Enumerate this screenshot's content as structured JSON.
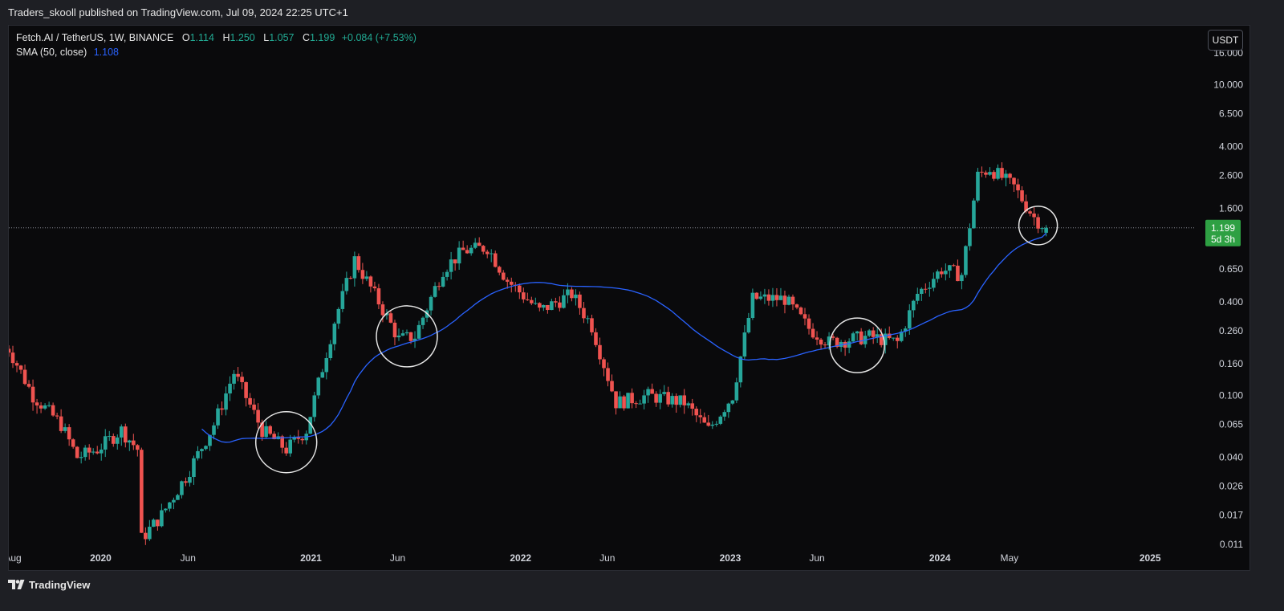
{
  "header": {
    "published_line": "Traders_skooll published on TradingView.com, Jul 09, 2024 22:25 UTC+1"
  },
  "legend": {
    "symbol": "Fetch.AI / TetherUS, 1W, BINANCE",
    "o_key": "O",
    "open": "1.114",
    "h_key": "H",
    "high": "1.250",
    "l_key": "L",
    "low": "1.057",
    "c_key": "C",
    "close": "1.199",
    "change": "+0.084 (+7.53%)",
    "sma_label": "SMA (50, close)",
    "sma_value": "1.108"
  },
  "price_axis": {
    "unit_button": "USDT",
    "last_price": "1.199",
    "countdown": "5d 3h"
  },
  "footer": {
    "brand": "TradingView"
  },
  "colors": {
    "background": "#0a0a0c",
    "up": "#26a69a",
    "down": "#ef5350",
    "sma": "#2962ff",
    "last_price_tag": "#2ea043"
  },
  "chart_data": {
    "type": "candlestick",
    "timeframe": "1W",
    "y_scale": "log",
    "ylim": [
      0.011,
      16.0
    ],
    "xlim": [
      "2019-07-25",
      "2025-03-20"
    ],
    "y_ticks": [
      "16.000",
      "10.000",
      "6.500",
      "4.000",
      "2.600",
      "1.600",
      "0.650",
      "0.400",
      "0.260",
      "0.160",
      "0.100",
      "0.065",
      "0.040",
      "0.026",
      "0.017",
      "0.011"
    ],
    "x_ticks": [
      {
        "label": "Aug",
        "date": "2019-08-01"
      },
      {
        "label": "2020",
        "date": "2020-01-01"
      },
      {
        "label": "Jun",
        "date": "2020-06-01"
      },
      {
        "label": "2021",
        "date": "2021-01-01"
      },
      {
        "label": "Jun",
        "date": "2021-06-01"
      },
      {
        "label": "2022",
        "date": "2022-01-01"
      },
      {
        "label": "Jun",
        "date": "2022-06-01"
      },
      {
        "label": "2023",
        "date": "2023-01-01"
      },
      {
        "label": "Jun",
        "date": "2023-06-01"
      },
      {
        "label": "2024",
        "date": "2024-01-01"
      },
      {
        "label": "May",
        "date": "2024-05-01"
      },
      {
        "label": "2025",
        "date": "2025-01-01"
      }
    ],
    "price_anchors": [
      [
        "2019-07-25",
        0.2
      ],
      [
        "2019-09-05",
        0.1
      ],
      [
        "2019-10-24",
        0.065
      ],
      [
        "2019-11-21",
        0.04
      ],
      [
        "2019-12-26",
        0.045
      ],
      [
        "2020-02-06",
        0.06
      ],
      [
        "2020-03-05",
        0.045
      ],
      [
        "2020-03-12",
        0.012
      ],
      [
        "2020-04-16",
        0.017
      ],
      [
        "2020-05-28",
        0.03
      ],
      [
        "2020-07-16",
        0.065
      ],
      [
        "2020-08-20",
        0.14
      ],
      [
        "2020-10-08",
        0.06
      ],
      [
        "2020-11-19",
        0.045
      ],
      [
        "2020-12-24",
        0.06
      ],
      [
        "2021-02-11",
        0.3
      ],
      [
        "2021-03-18",
        0.75
      ],
      [
        "2021-04-29",
        0.4
      ],
      [
        "2021-06-03",
        0.23
      ],
      [
        "2021-07-01",
        0.24
      ],
      [
        "2021-08-19",
        0.65
      ],
      [
        "2021-09-23",
        0.85
      ],
      [
        "2021-11-04",
        0.9
      ],
      [
        "2021-12-09",
        0.55
      ],
      [
        "2022-02-03",
        0.35
      ],
      [
        "2022-03-31",
        0.45
      ],
      [
        "2022-05-05",
        0.28
      ],
      [
        "2022-06-16",
        0.09
      ],
      [
        "2022-08-11",
        0.1
      ],
      [
        "2022-10-13",
        0.09
      ],
      [
        "2022-11-24",
        0.06
      ],
      [
        "2023-01-05",
        0.1
      ],
      [
        "2023-02-09",
        0.42
      ],
      [
        "2023-04-06",
        0.42
      ],
      [
        "2023-05-18",
        0.27
      ],
      [
        "2023-06-22",
        0.22
      ],
      [
        "2023-08-31",
        0.24
      ],
      [
        "2023-10-19",
        0.22
      ],
      [
        "2023-11-23",
        0.45
      ],
      [
        "2024-01-04",
        0.65
      ],
      [
        "2024-02-08",
        0.6
      ],
      [
        "2024-03-07",
        2.6
      ],
      [
        "2024-03-28",
        2.9
      ],
      [
        "2024-05-09",
        2.2
      ],
      [
        "2024-06-13",
        1.4
      ],
      [
        "2024-07-04",
        1.199
      ]
    ],
    "last_candle": {
      "date": "2024-07-04",
      "open": 1.114,
      "high": 1.25,
      "low": 1.057,
      "close": 1.199
    },
    "sma": {
      "period": 50,
      "source": "close",
      "last_value": 1.108
    }
  }
}
